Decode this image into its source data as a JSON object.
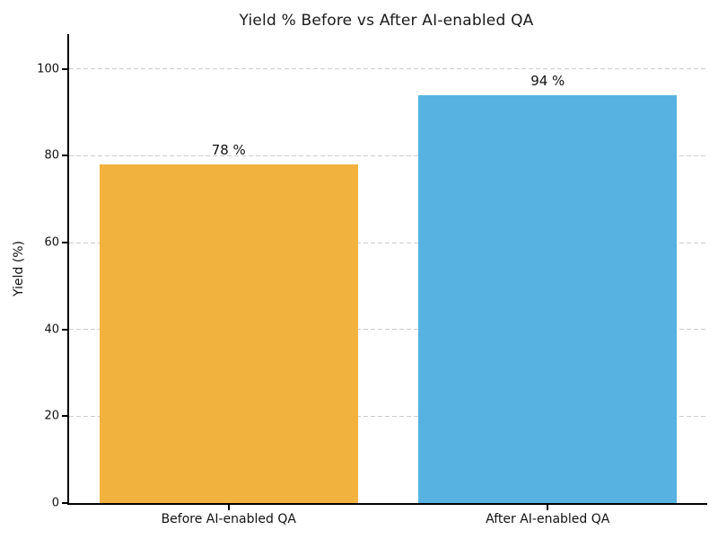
{
  "chart_data": {
    "type": "bar",
    "title": "Yield % Before vs After AI-enabled QA",
    "xlabel": "",
    "ylabel": "Yield (%)",
    "categories": [
      "Before AI-enabled QA",
      "After AI-enabled QA"
    ],
    "values": [
      78,
      94
    ],
    "bar_labels": [
      "78 %",
      "94 %"
    ],
    "bar_colors": [
      "#F2B23E",
      "#57B2E1"
    ],
    "yticks": [
      0,
      20,
      40,
      60,
      80,
      100
    ],
    "ylim": [
      0,
      108
    ],
    "grid": "horizontal-dashed",
    "grid_color": "#cccccc",
    "axis_color": "#000000",
    "background_color": "#ffffff",
    "legend": "none"
  }
}
